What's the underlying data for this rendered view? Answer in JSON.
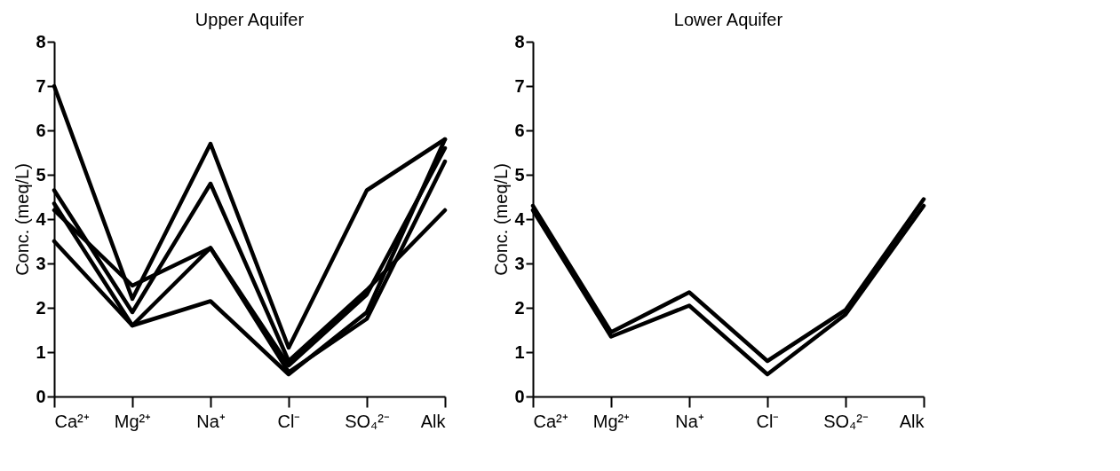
{
  "chart_data": [
    {
      "type": "line",
      "title": "Upper Aquifer",
      "ylabel": "Conc. (meq/L)",
      "categories": [
        "Ca²⁺",
        "Mg²⁺",
        "Na⁺",
        "Cl⁻",
        "SO₄²⁻",
        "Alk"
      ],
      "ylim": [
        0,
        8
      ],
      "yticks": [
        0,
        1,
        2,
        3,
        4,
        5,
        6,
        7,
        8
      ],
      "grid": false,
      "legend": false,
      "series": [
        {
          "color": "#000000",
          "values": [
            7.0,
            2.2,
            5.7,
            1.1,
            4.65,
            5.8
          ]
        },
        {
          "color": "#000000",
          "values": [
            4.65,
            1.9,
            4.8,
            0.8,
            2.4,
            4.2
          ]
        },
        {
          "color": "#000000",
          "values": [
            4.2,
            2.5,
            3.35,
            0.7,
            2.3,
            5.6
          ]
        },
        {
          "color": "#000000",
          "values": [
            4.35,
            1.6,
            3.35,
            0.55,
            1.75,
            5.3
          ]
        },
        {
          "color": "#000000",
          "values": [
            3.5,
            1.6,
            2.15,
            0.5,
            1.9,
            5.8
          ]
        }
      ]
    },
    {
      "type": "line",
      "title": "Lower Aquifer",
      "ylabel": "Conc. (meq/L)",
      "categories": [
        "Ca²⁺",
        "Mg²⁺",
        "Na⁺",
        "Cl⁻",
        "SO₄²⁻",
        "Alk"
      ],
      "ylim": [
        0,
        8
      ],
      "yticks": [
        0,
        1,
        2,
        3,
        4,
        5,
        6,
        7,
        8
      ],
      "grid": false,
      "legend": false,
      "series": [
        {
          "color": "#000000",
          "values": [
            4.3,
            1.45,
            2.35,
            0.8,
            1.95,
            4.45
          ]
        },
        {
          "color": "#000000",
          "values": [
            4.2,
            1.35,
            2.05,
            0.5,
            1.85,
            4.3
          ]
        }
      ]
    }
  ]
}
